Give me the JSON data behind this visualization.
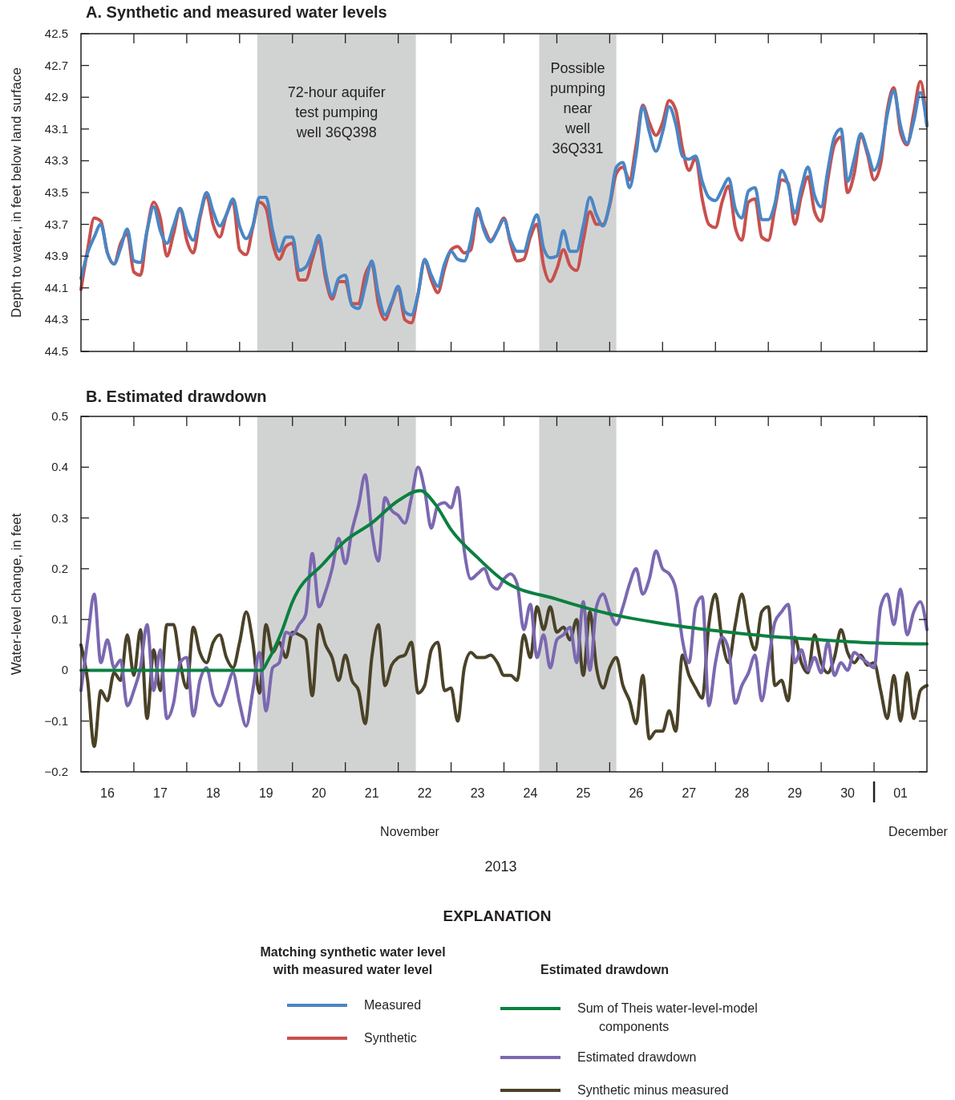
{
  "chart_data": [
    {
      "type": "line",
      "title": "A. Synthetic and measured water levels",
      "ylabel": "Depth to water, in feet below land surface",
      "legend": "bottom",
      "legend_title": "Matching synthetic water level with measured water level",
      "tick_labels": "y",
      "xlim": [
        "2013-11-16T00:00",
        "2013-12-02T00:00"
      ],
      "xticks": [
        {
          "value": "2013-11-17T00:00",
          "label": null
        },
        {
          "value": "2013-11-18T00:00",
          "label": null
        },
        {
          "value": "2013-11-19T00:00",
          "label": null
        },
        {
          "value": "2013-11-20T00:00",
          "label": null
        },
        {
          "value": "2013-11-21T00:00",
          "label": null
        },
        {
          "value": "2013-11-22T00:00",
          "label": null
        },
        {
          "value": "2013-11-23T00:00",
          "label": null
        },
        {
          "value": "2013-11-24T00:00",
          "label": null
        },
        {
          "value": "2013-11-25T00:00",
          "label": null
        },
        {
          "value": "2013-11-26T00:00",
          "label": null
        },
        {
          "value": "2013-11-27T00:00",
          "label": null
        },
        {
          "value": "2013-11-28T00:00",
          "label": null
        },
        {
          "value": "2013-11-29T00:00",
          "label": null
        },
        {
          "value": "2013-11-30T00:00",
          "label": null
        },
        {
          "value": "2013-12-01T00:00",
          "label": null
        }
      ],
      "ylim": [
        44.5,
        42.5
      ],
      "yticks": [
        42.5,
        42.7,
        42.9,
        43.1,
        43.3,
        43.5,
        43.7,
        43.9,
        44.1,
        44.3,
        44.5
      ],
      "bands": [
        {
          "axis": "x",
          "from": "2013-11-19T08:00",
          "to": "2013-11-22T08:00",
          "label": "72-hour aquifer test pumping well 36Q398",
          "color": "#d1d3d2"
        },
        {
          "axis": "x",
          "from": "2013-11-24T16:00",
          "to": "2013-11-26T03:00",
          "label": "Possible pumping near well 36Q331",
          "color": "#d1d3d2"
        }
      ],
      "x": [
        "2013-11-16T00:00",
        "2013-11-16T03:00",
        "2013-11-16T06:00",
        "2013-11-16T09:00",
        "2013-11-16T12:00",
        "2013-11-16T15:00",
        "2013-11-16T18:00",
        "2013-11-16T21:00",
        "2013-11-17T00:00",
        "2013-11-17T03:00",
        "2013-11-17T06:00",
        "2013-11-17T09:00",
        "2013-11-17T12:00",
        "2013-11-17T15:00",
        "2013-11-17T18:00",
        "2013-11-17T21:00",
        "2013-11-18T00:00",
        "2013-11-18T03:00",
        "2013-11-18T06:00",
        "2013-11-18T09:00",
        "2013-11-18T12:00",
        "2013-11-18T15:00",
        "2013-11-18T18:00",
        "2013-11-18T21:00",
        "2013-11-19T00:00",
        "2013-11-19T03:00",
        "2013-11-19T06:00",
        "2013-11-19T09:00",
        "2013-11-19T12:00",
        "2013-11-19T15:00",
        "2013-11-19T18:00",
        "2013-11-19T21:00",
        "2013-11-20T00:00",
        "2013-11-20T03:00",
        "2013-11-20T06:00",
        "2013-11-20T09:00",
        "2013-11-20T12:00",
        "2013-11-20T15:00",
        "2013-11-20T18:00",
        "2013-11-20T21:00",
        "2013-11-21T00:00",
        "2013-11-21T03:00",
        "2013-11-21T06:00",
        "2013-11-21T09:00",
        "2013-11-21T12:00",
        "2013-11-21T15:00",
        "2013-11-21T18:00",
        "2013-11-21T21:00",
        "2013-11-22T00:00",
        "2013-11-22T03:00",
        "2013-11-22T06:00",
        "2013-11-22T09:00",
        "2013-11-22T12:00",
        "2013-11-22T15:00",
        "2013-11-22T18:00",
        "2013-11-22T21:00",
        "2013-11-23T00:00",
        "2013-11-23T03:00",
        "2013-11-23T06:00",
        "2013-11-23T09:00",
        "2013-11-23T12:00",
        "2013-11-23T15:00",
        "2013-11-23T18:00",
        "2013-11-23T21:00",
        "2013-11-24T00:00",
        "2013-11-24T03:00",
        "2013-11-24T06:00",
        "2013-11-24T09:00",
        "2013-11-24T12:00",
        "2013-11-24T15:00",
        "2013-11-24T18:00",
        "2013-11-24T21:00",
        "2013-11-25T00:00",
        "2013-11-25T03:00",
        "2013-11-25T06:00",
        "2013-11-25T09:00",
        "2013-11-25T12:00",
        "2013-11-25T15:00",
        "2013-11-25T18:00",
        "2013-11-25T21:00",
        "2013-11-26T00:00",
        "2013-11-26T03:00",
        "2013-11-26T06:00",
        "2013-11-26T09:00",
        "2013-11-26T12:00",
        "2013-11-26T15:00",
        "2013-11-26T18:00",
        "2013-11-26T21:00",
        "2013-11-27T00:00",
        "2013-11-27T03:00",
        "2013-11-27T06:00",
        "2013-11-27T09:00",
        "2013-11-27T12:00",
        "2013-11-27T15:00",
        "2013-11-27T18:00",
        "2013-11-27T21:00",
        "2013-11-28T00:00",
        "2013-11-28T03:00",
        "2013-11-28T06:00",
        "2013-11-28T09:00",
        "2013-11-28T12:00",
        "2013-11-28T15:00",
        "2013-11-28T18:00",
        "2013-11-28T21:00",
        "2013-11-29T00:00",
        "2013-11-29T03:00",
        "2013-11-29T06:00",
        "2013-11-29T09:00",
        "2013-11-29T12:00",
        "2013-11-29T15:00",
        "2013-11-29T18:00",
        "2013-11-29T21:00",
        "2013-11-30T00:00",
        "2013-11-30T03:00",
        "2013-11-30T06:00",
        "2013-11-30T09:00",
        "2013-11-30T12:00",
        "2013-11-30T15:00",
        "2013-11-30T18:00",
        "2013-11-30T21:00",
        "2013-12-01T00:00",
        "2013-12-01T03:00",
        "2013-12-01T06:00",
        "2013-12-01T09:00",
        "2013-12-01T12:00",
        "2013-12-01T15:00",
        "2013-12-01T18:00",
        "2013-12-01T21:00",
        "2013-12-02T00:00"
      ],
      "series": [
        {
          "name": "Measured",
          "color": "#4a86c5",
          "values": [
            44.04,
            43.88,
            43.78,
            43.7,
            43.88,
            43.95,
            43.85,
            43.73,
            43.93,
            43.94,
            43.74,
            43.59,
            43.74,
            43.82,
            43.71,
            43.6,
            43.73,
            43.8,
            43.64,
            43.5,
            43.62,
            43.71,
            43.64,
            43.54,
            43.71,
            43.79,
            43.71,
            43.53,
            43.53,
            43.74,
            43.87,
            43.78,
            43.78,
            43.99,
            43.97,
            43.88,
            43.77,
            44.0,
            44.15,
            44.04,
            44.02,
            44.21,
            44.23,
            44.09,
            43.93,
            44.14,
            44.27,
            44.19,
            44.09,
            44.25,
            44.27,
            44.14,
            43.92,
            44.02,
            44.09,
            43.95,
            43.87,
            43.92,
            43.93,
            43.8,
            43.6,
            43.74,
            43.81,
            43.74,
            43.67,
            43.8,
            43.87,
            43.87,
            43.74,
            43.64,
            43.85,
            43.91,
            43.9,
            43.74,
            43.87,
            43.87,
            43.71,
            43.53,
            43.64,
            43.71,
            43.57,
            43.34,
            43.31,
            43.47,
            43.26,
            42.96,
            43.12,
            43.24,
            43.12,
            42.96,
            43.07,
            43.27,
            43.29,
            43.27,
            43.43,
            43.53,
            43.55,
            43.48,
            43.41,
            43.6,
            43.66,
            43.49,
            43.47,
            43.67,
            43.67,
            43.57,
            43.36,
            43.45,
            43.63,
            43.47,
            43.34,
            43.52,
            43.59,
            43.36,
            43.15,
            43.1,
            43.43,
            43.29,
            43.13,
            43.24,
            43.36,
            43.26,
            43.01,
            42.86,
            43.08,
            43.19,
            43.05,
            42.87,
            43.08
          ]
        },
        {
          "name": "Synthetic",
          "color": "#c8504d",
          "values": [
            44.11,
            43.86,
            43.66,
            43.68,
            43.88,
            43.95,
            43.82,
            43.76,
            44.0,
            44.02,
            43.74,
            43.56,
            43.66,
            43.9,
            43.76,
            43.6,
            43.8,
            43.88,
            43.66,
            43.52,
            43.7,
            43.78,
            43.64,
            43.56,
            43.86,
            43.89,
            43.72,
            43.56,
            43.6,
            43.82,
            43.92,
            43.84,
            43.82,
            44.05,
            44.05,
            43.92,
            43.8,
            44.04,
            44.17,
            44.06,
            44.06,
            44.2,
            44.2,
            44.02,
            43.95,
            44.2,
            44.3,
            44.2,
            44.1,
            44.3,
            44.32,
            44.14,
            43.93,
            44.05,
            44.13,
            43.98,
            43.86,
            43.84,
            43.88,
            43.86,
            43.63,
            43.72,
            43.8,
            43.74,
            43.66,
            43.82,
            43.93,
            43.92,
            43.78,
            43.7,
            43.96,
            44.06,
            43.98,
            43.86,
            43.96,
            43.99,
            43.8,
            43.62,
            43.7,
            43.7,
            43.58,
            43.38,
            43.34,
            43.42,
            43.2,
            42.95,
            43.06,
            43.14,
            43.06,
            42.92,
            42.98,
            43.22,
            43.36,
            43.28,
            43.54,
            43.7,
            43.72,
            43.56,
            43.46,
            43.72,
            43.8,
            43.56,
            43.54,
            43.78,
            43.8,
            43.6,
            43.42,
            43.44,
            43.7,
            43.52,
            43.4,
            43.62,
            43.68,
            43.42,
            43.2,
            43.15,
            43.5,
            43.38,
            43.14,
            43.26,
            43.42,
            43.32,
            42.98,
            42.84,
            43.12,
            43.2,
            43.0,
            42.8,
            43.08
          ]
        }
      ]
    },
    {
      "type": "line",
      "title": "B. Estimated drawdown",
      "ylabel": "Water-level change, in feet",
      "xlabel": "2013",
      "legend": "bottom",
      "legend_title": "Estimated drawdown",
      "annotations": [
        "November",
        "December",
        "EXPLANATION"
      ],
      "xlim": [
        "2013-11-16T00:00",
        "2013-12-02T00:00"
      ],
      "xticks": [
        {
          "value": "2013-11-17T00:00",
          "label": null
        },
        {
          "value": "2013-11-18T00:00",
          "label": null
        },
        {
          "value": "2013-11-19T00:00",
          "label": null
        },
        {
          "value": "2013-11-20T00:00",
          "label": null
        },
        {
          "value": "2013-11-21T00:00",
          "label": null
        },
        {
          "value": "2013-11-22T00:00",
          "label": null
        },
        {
          "value": "2013-11-23T00:00",
          "label": null
        },
        {
          "value": "2013-11-24T00:00",
          "label": null
        },
        {
          "value": "2013-11-25T00:00",
          "label": null
        },
        {
          "value": "2013-11-26T00:00",
          "label": null
        },
        {
          "value": "2013-11-27T00:00",
          "label": null
        },
        {
          "value": "2013-11-28T00:00",
          "label": null
        },
        {
          "value": "2013-11-29T00:00",
          "label": null
        },
        {
          "value": "2013-11-30T00:00",
          "label": null
        },
        {
          "value": "2013-12-01T00:00",
          "label": null
        },
        {
          "value": "2013-11-16T12:00",
          "label": "16"
        },
        {
          "value": "2013-11-17T12:00",
          "label": "17"
        },
        {
          "value": "2013-11-18T12:00",
          "label": "18"
        },
        {
          "value": "2013-11-19T12:00",
          "label": "19"
        },
        {
          "value": "2013-11-20T12:00",
          "label": "20"
        },
        {
          "value": "2013-11-21T12:00",
          "label": "21"
        },
        {
          "value": "2013-11-22T12:00",
          "label": "22"
        },
        {
          "value": "2013-11-23T12:00",
          "label": "23"
        },
        {
          "value": "2013-11-24T12:00",
          "label": "24"
        },
        {
          "value": "2013-11-25T12:00",
          "label": "25"
        },
        {
          "value": "2013-11-26T12:00",
          "label": "26"
        },
        {
          "value": "2013-11-27T12:00",
          "label": "27"
        },
        {
          "value": "2013-11-28T12:00",
          "label": "28"
        },
        {
          "value": "2013-11-29T12:00",
          "label": "29"
        },
        {
          "value": "2013-11-30T12:00",
          "label": "30"
        },
        {
          "value": "2013-12-01T12:00",
          "label": "01"
        }
      ],
      "ylim": [
        -0.2,
        0.5
      ],
      "yticks": [
        {
          "value": -0.2,
          "label": "−0.2"
        },
        {
          "value": -0.1,
          "label": "−0.1"
        },
        0,
        0.1,
        0.2,
        0.3,
        0.4,
        0.5
      ],
      "bands": [
        {
          "axis": "x",
          "from": "2013-11-19T08:00",
          "to": "2013-11-22T08:00",
          "color": "#d1d3d2"
        },
        {
          "axis": "x",
          "from": "2013-11-24T16:00",
          "to": "2013-11-26T03:00",
          "color": "#d1d3d2"
        }
      ],
      "x": [
        "2013-11-16T00:00",
        "2013-11-16T03:00",
        "2013-11-16T06:00",
        "2013-11-16T09:00",
        "2013-11-16T12:00",
        "2013-11-16T15:00",
        "2013-11-16T18:00",
        "2013-11-16T21:00",
        "2013-11-17T00:00",
        "2013-11-17T03:00",
        "2013-11-17T06:00",
        "2013-11-17T09:00",
        "2013-11-17T12:00",
        "2013-11-17T15:00",
        "2013-11-17T18:00",
        "2013-11-17T21:00",
        "2013-11-18T00:00",
        "2013-11-18T03:00",
        "2013-11-18T06:00",
        "2013-11-18T09:00",
        "2013-11-18T12:00",
        "2013-11-18T15:00",
        "2013-11-18T18:00",
        "2013-11-18T21:00",
        "2013-11-19T00:00",
        "2013-11-19T03:00",
        "2013-11-19T06:00",
        "2013-11-19T09:00",
        "2013-11-19T12:00",
        "2013-11-19T15:00",
        "2013-11-19T18:00",
        "2013-11-19T21:00",
        "2013-11-20T00:00",
        "2013-11-20T03:00",
        "2013-11-20T06:00",
        "2013-11-20T09:00",
        "2013-11-20T12:00",
        "2013-11-20T15:00",
        "2013-11-20T18:00",
        "2013-11-20T21:00",
        "2013-11-21T00:00",
        "2013-11-21T03:00",
        "2013-11-21T06:00",
        "2013-11-21T09:00",
        "2013-11-21T12:00",
        "2013-11-21T15:00",
        "2013-11-21T18:00",
        "2013-11-21T21:00",
        "2013-11-22T00:00",
        "2013-11-22T03:00",
        "2013-11-22T06:00",
        "2013-11-22T09:00",
        "2013-11-22T12:00",
        "2013-11-22T15:00",
        "2013-11-22T18:00",
        "2013-11-22T21:00",
        "2013-11-23T00:00",
        "2013-11-23T03:00",
        "2013-11-23T06:00",
        "2013-11-23T09:00",
        "2013-11-23T12:00",
        "2013-11-23T15:00",
        "2013-11-23T18:00",
        "2013-11-23T21:00",
        "2013-11-24T00:00",
        "2013-11-24T03:00",
        "2013-11-24T06:00",
        "2013-11-24T09:00",
        "2013-11-24T12:00",
        "2013-11-24T15:00",
        "2013-11-24T18:00",
        "2013-11-24T21:00",
        "2013-11-25T00:00",
        "2013-11-25T03:00",
        "2013-11-25T06:00",
        "2013-11-25T09:00",
        "2013-11-25T12:00",
        "2013-11-25T15:00",
        "2013-11-25T18:00",
        "2013-11-25T21:00",
        "2013-11-26T00:00",
        "2013-11-26T03:00",
        "2013-11-26T06:00",
        "2013-11-26T09:00",
        "2013-11-26T12:00",
        "2013-11-26T15:00",
        "2013-11-26T18:00",
        "2013-11-26T21:00",
        "2013-11-27T00:00",
        "2013-11-27T03:00",
        "2013-11-27T06:00",
        "2013-11-27T09:00",
        "2013-11-27T12:00",
        "2013-11-27T15:00",
        "2013-11-27T18:00",
        "2013-11-27T21:00",
        "2013-11-28T00:00",
        "2013-11-28T03:00",
        "2013-11-28T06:00",
        "2013-11-28T09:00",
        "2013-11-28T12:00",
        "2013-11-28T15:00",
        "2013-11-28T18:00",
        "2013-11-28T21:00",
        "2013-11-29T00:00",
        "2013-11-29T03:00",
        "2013-11-29T06:00",
        "2013-11-29T09:00",
        "2013-11-29T12:00",
        "2013-11-29T15:00",
        "2013-11-29T18:00",
        "2013-11-29T21:00",
        "2013-11-30T00:00",
        "2013-11-30T03:00",
        "2013-11-30T06:00",
        "2013-11-30T09:00",
        "2013-11-30T12:00",
        "2013-11-30T15:00",
        "2013-11-30T18:00",
        "2013-11-30T21:00",
        "2013-12-01T00:00",
        "2013-12-01T03:00",
        "2013-12-01T06:00",
        "2013-12-01T09:00",
        "2013-12-01T12:00",
        "2013-12-01T15:00",
        "2013-12-01T18:00",
        "2013-12-01T21:00",
        "2013-12-02T00:00"
      ],
      "series": [
        {
          "name": "Sum of Theis water-level-model components",
          "color": "#0b8040",
          "x": [
            "2013-11-16T00:00",
            "2013-11-19T10:00",
            "2013-11-19T13:00",
            "2013-11-19T19:00",
            "2013-11-20T00:00",
            "2013-11-20T14:00",
            "2013-11-21T00:00",
            "2013-11-21T12:00",
            "2013-11-22T00:00",
            "2013-11-22T10:00",
            "2013-11-22T17:00",
            "2013-11-23T00:00",
            "2013-11-23T12:00",
            "2013-11-24T00:00",
            "2013-11-25T00:00",
            "2013-11-26T00:00",
            "2013-11-27T00:00",
            "2013-11-28T00:00",
            "2013-11-29T00:00",
            "2013-11-30T00:00",
            "2013-12-01T00:00",
            "2013-12-02T00:00"
          ],
          "values": [
            0,
            0,
            0.02,
            0.075,
            0.135,
            0.21,
            0.255,
            0.29,
            0.334,
            0.354,
            0.326,
            0.277,
            0.222,
            0.176,
            0.14,
            0.111,
            0.092,
            0.078,
            0.067,
            0.06,
            0.054,
            0.052
          ]
        },
        {
          "name": "Estimated drawdown",
          "color": "#7b68b0",
          "values": [
            -0.04,
            0.06,
            0.15,
            0.015,
            0.06,
            0.005,
            0.02,
            -0.07,
            -0.04,
            0.005,
            0.09,
            -0.04,
            0.04,
            -0.095,
            -0.065,
            0.015,
            0.025,
            -0.09,
            -0.02,
            0.005,
            -0.05,
            -0.07,
            -0.04,
            -0.005,
            -0.065,
            -0.11,
            -0.04,
            0.035,
            -0.08,
            0.005,
            0.015,
            0.075,
            0.07,
            0.09,
            0.11,
            0.23,
            0.125,
            0.155,
            0.2,
            0.26,
            0.21,
            0.275,
            0.325,
            0.385,
            0.275,
            0.215,
            0.34,
            0.315,
            0.305,
            0.29,
            0.34,
            0.4,
            0.355,
            0.28,
            0.325,
            0.33,
            0.32,
            0.36,
            0.235,
            0.18,
            0.19,
            0.2,
            0.17,
            0.16,
            0.18,
            0.19,
            0.17,
            0.08,
            0.13,
            0.025,
            0.07,
            0.005,
            0.06,
            0.07,
            0.085,
            0.015,
            0.135,
            0,
            0.125,
            0.15,
            0.115,
            0.09,
            0.125,
            0.17,
            0.2,
            0.15,
            0.18,
            0.235,
            0.2,
            0.19,
            0.16,
            0.06,
            0.015,
            0.125,
            0.145,
            -0.07,
            0.015,
            0.065,
            0.04,
            -0.065,
            -0.03,
            -0.005,
            0.03,
            -0.06,
            0.015,
            0.095,
            0.115,
            0.13,
            0.015,
            0.04,
            0,
            0.025,
            -0.005,
            0.055,
            -0.01,
            0.015,
            0,
            0.035,
            0.025,
            0.015,
            0.005,
            0.125,
            0.15,
            0.09,
            0.16,
            0.07,
            0.115,
            0.135,
            0.08
          ]
        },
        {
          "name": "Synthetic minus measured",
          "color": "#4a4228",
          "values": [
            0.05,
            -0.02,
            -0.15,
            -0.04,
            -0.06,
            -0.005,
            -0.02,
            0.07,
            -0.01,
            0.08,
            -0.095,
            0.04,
            -0.04,
            0.09,
            0.09,
            0.015,
            -0.035,
            0.085,
            0.035,
            0.015,
            0.055,
            0.07,
            0.025,
            0.005,
            0.055,
            0.115,
            0.055,
            -0.045,
            0.09,
            0.035,
            0.055,
            0.025,
            0.075,
            0.07,
            0.06,
            -0.05,
            0.09,
            0.05,
            0.025,
            -0.02,
            0.03,
            -0.02,
            -0.04,
            -0.105,
            0.025,
            0.09,
            -0.03,
            0.01,
            0.025,
            0.03,
            0.055,
            -0.045,
            -0.03,
            0.04,
            0.055,
            -0.04,
            -0.035,
            -0.1,
            0.005,
            0.035,
            0.025,
            0.025,
            0.03,
            0.015,
            -0.01,
            -0.01,
            -0.02,
            0.07,
            0.025,
            0.125,
            0.08,
            0.125,
            0.075,
            0.085,
            0.06,
            0.1,
            -0.01,
            0.115,
            0.005,
            -0.035,
            0.005,
            0.025,
            -0.03,
            -0.06,
            -0.105,
            -0.01,
            -0.135,
            -0.12,
            -0.12,
            -0.08,
            -0.12,
            0.03,
            -0.01,
            -0.035,
            -0.055,
            0.09,
            0.15,
            0.06,
            0.015,
            0.09,
            0.15,
            0.08,
            0.04,
            0.115,
            0.125,
            -0.03,
            -0.02,
            -0.06,
            0.065,
            0.015,
            -0.005,
            0.07,
            0.015,
            -0.005,
            0.025,
            0.08,
            0.035,
            0.015,
            0.03,
            0.01,
            0.015,
            -0.04,
            -0.095,
            -0.01,
            -0.1,
            -0.005,
            -0.095,
            -0.04,
            -0.03
          ]
        }
      ]
    }
  ]
}
